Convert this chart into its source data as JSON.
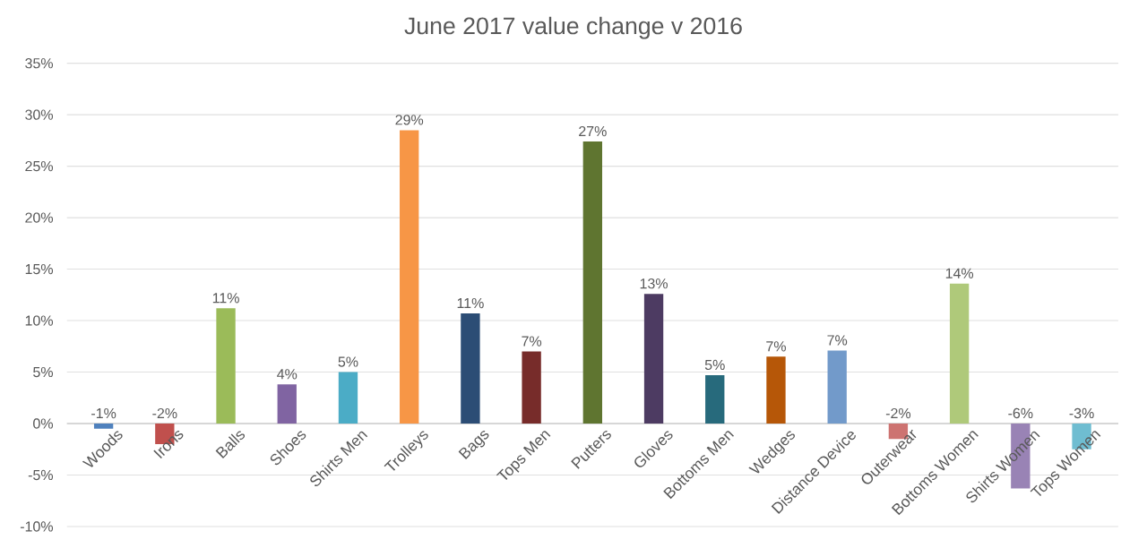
{
  "chart_data": {
    "type": "bar",
    "title": "June 2017 value change v 2016",
    "categories": [
      "Woods",
      "Irons",
      "Balls",
      "Shoes",
      "Shirts Men",
      "Trolleys",
      "Bags",
      "Tops Men",
      "Putters",
      "Gloves",
      "Bottoms Men",
      "Wedges",
      "Distance Device",
      "Outerwear",
      "Bottoms Women",
      "Shirts Women",
      "Tops Women"
    ],
    "values": [
      -0.5,
      -2,
      11.2,
      3.8,
      5,
      28.5,
      10.7,
      7,
      27.4,
      12.6,
      4.7,
      6.5,
      7.1,
      -1.5,
      13.6,
      -6.3,
      -2.5
    ],
    "value_labels": [
      "-1%",
      "-2%",
      "11%",
      "4%",
      "5%",
      "29%",
      "11%",
      "7%",
      "27%",
      "13%",
      "5%",
      "7%",
      "7%",
      "-2%",
      "14%",
      "-6%",
      "-3%"
    ],
    "colors": [
      "#4f81bd",
      "#c0504d",
      "#9bbb59",
      "#8064a2",
      "#4bacc6",
      "#f79646",
      "#2c4d75",
      "#772c2a",
      "#5f7530",
      "#4d3b62",
      "#276a7c",
      "#b65708",
      "#729aca",
      "#cd7371",
      "#afc97a",
      "#9983b5",
      "#6fbdd1"
    ],
    "ylim": [
      -10,
      35
    ],
    "yticks": [
      {
        "value": -10,
        "label": "-10%"
      },
      {
        "value": -5,
        "label": "-5%"
      },
      {
        "value": 0,
        "label": "0%"
      },
      {
        "value": 5,
        "label": "5%"
      },
      {
        "value": 10,
        "label": "10%"
      },
      {
        "value": 15,
        "label": "15%"
      },
      {
        "value": 20,
        "label": "20%"
      },
      {
        "value": 25,
        "label": "25%"
      },
      {
        "value": 30,
        "label": "30%"
      },
      {
        "value": 35,
        "label": "35%"
      }
    ],
    "grid": "y"
  }
}
